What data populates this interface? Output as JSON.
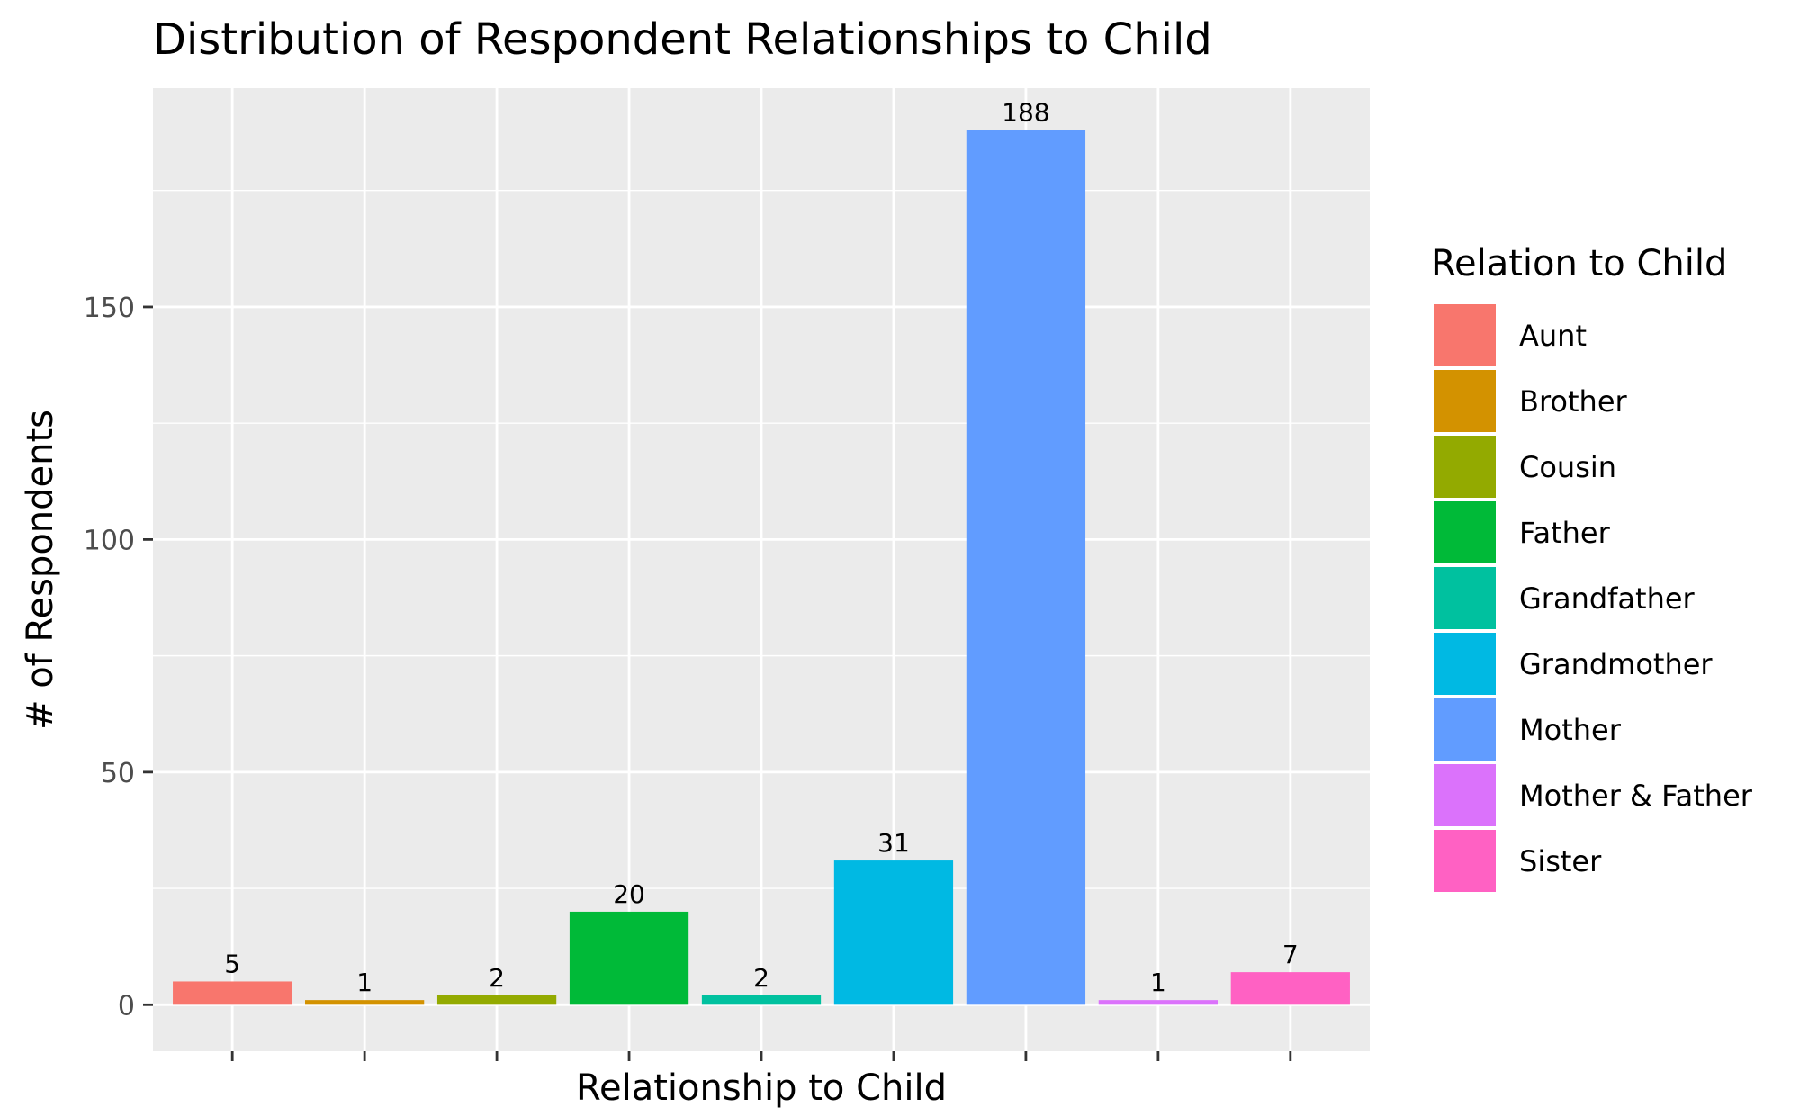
{
  "chart_data": {
    "type": "bar",
    "title": "Distribution of Respondent Relationships to Child",
    "xlabel": "Relationship to Child",
    "ylabel": "# of Respondents",
    "categories": [
      "Aunt",
      "Brother",
      "Cousin",
      "Father",
      "Grandfather",
      "Grandmother",
      "Mother",
      "Mother & Father",
      "Sister"
    ],
    "values": [
      5,
      1,
      2,
      20,
      2,
      31,
      188,
      1,
      7
    ],
    "colors": [
      "#F8766D",
      "#D39200",
      "#93AA00",
      "#00BA38",
      "#00C19F",
      "#00B9E3",
      "#619CFF",
      "#DB72FB",
      "#FF61C3"
    ],
    "ylim": [
      -10,
      197
    ],
    "yticks": [
      0,
      50,
      100,
      150
    ],
    "x_tick_labels_shown": false,
    "grid": true,
    "legend": {
      "title": "Relation to Child",
      "placement": "right",
      "entries": [
        "Aunt",
        "Brother",
        "Cousin",
        "Father",
        "Grandfather",
        "Grandmother",
        "Mother",
        "Mother & Father",
        "Sister"
      ]
    },
    "panel_background": "#EBEBEB",
    "grid_color": "#FFFFFF"
  }
}
